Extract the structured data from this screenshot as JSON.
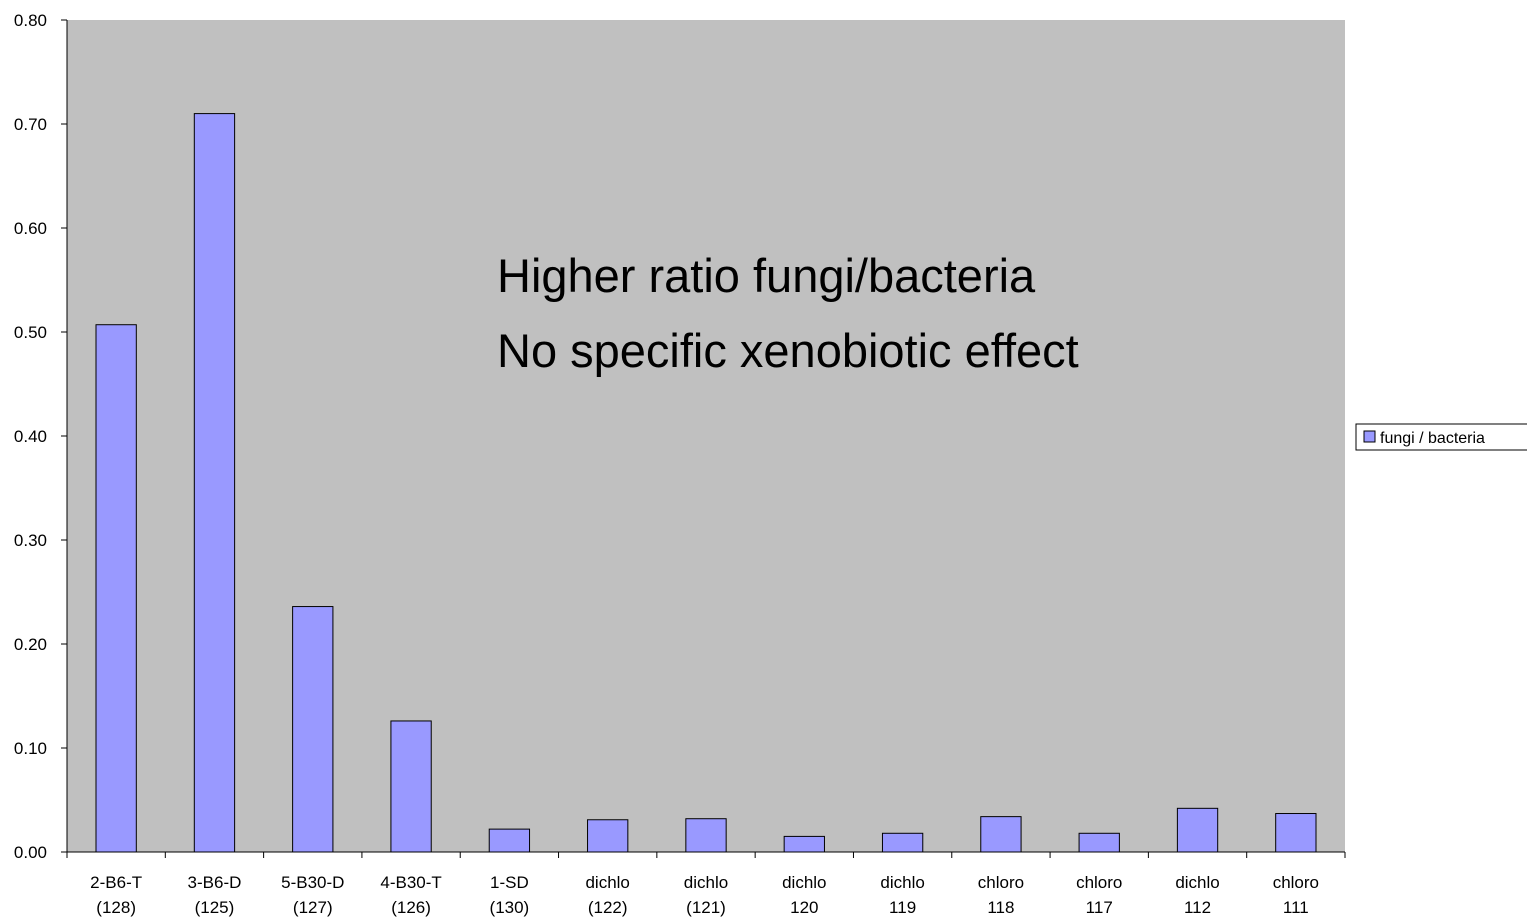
{
  "chart_data": {
    "type": "bar",
    "categories": [
      [
        "2-B6-T",
        "(128)"
      ],
      [
        "3-B6-D",
        "(125)"
      ],
      [
        "5-B30-D",
        "(127)"
      ],
      [
        "4-B30-T",
        "(126)"
      ],
      [
        "1-SD",
        "(130)"
      ],
      [
        "dichlo",
        "(122)"
      ],
      [
        "dichlo",
        "(121)"
      ],
      [
        "dichlo",
        "120"
      ],
      [
        "dichlo",
        "119"
      ],
      [
        "chloro",
        "118"
      ],
      [
        "chloro",
        "117"
      ],
      [
        "dichlo",
        "112"
      ],
      [
        "chloro",
        "111"
      ]
    ],
    "series": [
      {
        "name": "fungi / bacteria",
        "color": "#9999ff",
        "values": [
          0.507,
          0.71,
          0.236,
          0.126,
          0.022,
          0.031,
          0.032,
          0.015,
          0.018,
          0.034,
          0.018,
          0.042,
          0.037
        ]
      }
    ],
    "ylim": [
      0,
      0.8
    ],
    "yticks": [
      {
        "value": 0,
        "label": "0.00"
      },
      {
        "value": 0.1,
        "label": "0.10"
      },
      {
        "value": 0.2,
        "label": "0.20"
      },
      {
        "value": 0.3,
        "label": "0.30"
      },
      {
        "value": 0.4,
        "label": "0.40"
      },
      {
        "value": 0.5,
        "label": "0.50"
      },
      {
        "value": 0.6,
        "label": "0.60"
      },
      {
        "value": 0.7,
        "label": "0.70"
      },
      {
        "value": 0.8,
        "label": "0.80"
      }
    ],
    "annotations": [
      "Higher ratio fungi/bacteria",
      "No specific xenobiotic effect"
    ],
    "legend": "right"
  }
}
